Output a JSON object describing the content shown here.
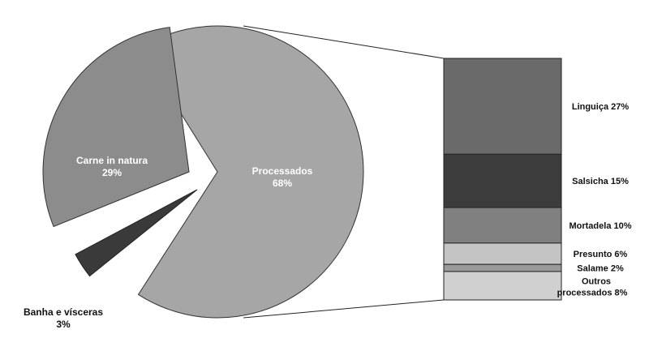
{
  "chart_data": [
    {
      "type": "pie",
      "slices": [
        {
          "label": "Processados",
          "value": 68,
          "value_label": "68%",
          "color": "#a6a6a6"
        },
        {
          "label": "Carne in natura",
          "value": 29,
          "value_label": "29%",
          "color": "#8c8c8c"
        },
        {
          "label": "Banha e vísceras",
          "value": 3,
          "value_label": "3%",
          "color": "#3a3a3a"
        }
      ],
      "exploded": true
    },
    {
      "type": "bar",
      "stacked": true,
      "description_of": "Processados",
      "categories": [
        "Linguiça",
        "Salsicha",
        "Mortadela",
        "Presunto",
        "Salame",
        "Outros processados"
      ],
      "values": [
        27,
        15,
        10,
        6,
        2,
        8
      ],
      "labels": [
        "Linguiça 27%",
        "Salsicha 15%",
        "Mortadela 10%",
        "Presunto 6%",
        "Salame 2%",
        "Outros processados  8%"
      ],
      "colors": [
        "#6a6a6a",
        "#3c3c3c",
        "#808080",
        "#c4c4c4",
        "#9a9a9a",
        "#d0d0d0"
      ]
    }
  ]
}
